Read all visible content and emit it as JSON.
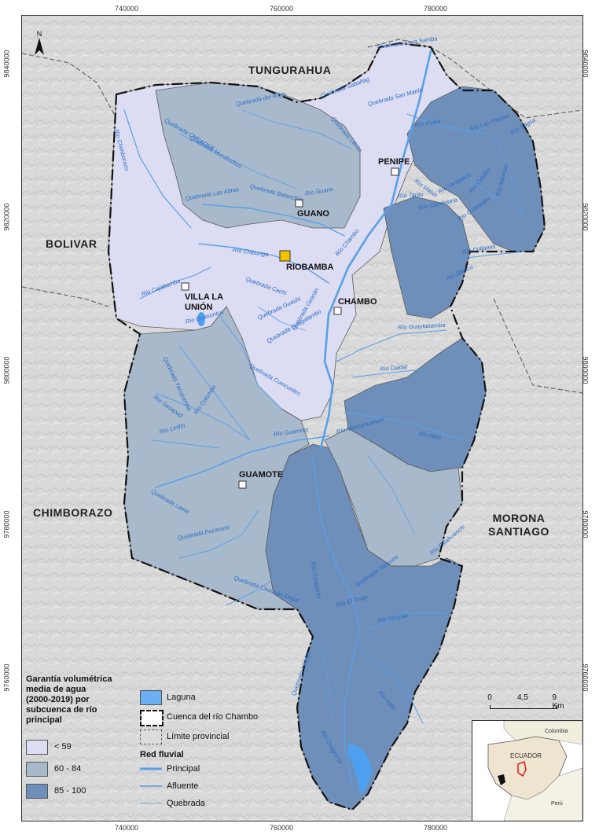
{
  "axes": {
    "x_ticks_top": [
      "740000",
      "760000",
      "780000"
    ],
    "x_ticks_bottom": [
      "740000",
      "760000",
      "780000"
    ],
    "y_ticks_left": [
      "9840000",
      "9820000",
      "9800000",
      "9780000",
      "9760000"
    ],
    "y_ticks_right": [
      "9840000",
      "9820000",
      "9800000",
      "9780000",
      "9760000"
    ]
  },
  "north_arrow": "N",
  "provinces": {
    "tungurahua": "TUNGURAHUA",
    "bolivar": "BOLIVAR",
    "chimborazo": "CHIMBORAZO",
    "morona": "MORONA SANTIAGO"
  },
  "cities": {
    "penipe": "PENIPE",
    "guano": "GUANO",
    "riobamba": "RIOBAMBA",
    "villa": "VILLA LA UNIÓN",
    "chambo": "CHAMBO",
    "guamote": "GUAMOTE"
  },
  "rivers": [
    "Quebrada Pera Samba",
    "Quebrada del Rayo",
    "Quebrada Sabañag",
    "Quebrada San Martín",
    "Quebrada Chilcazaca",
    "Quebrada Murufushca",
    "Quebrada Olivito",
    "Río Puela",
    "Río Las Flautas",
    "Río Sagsa",
    "Río Chimborazo",
    "Quebrada Batanchín",
    "Río Guano",
    "Quebrada Las Abras",
    "Río Matus",
    "Río Yanayacu",
    "Río Cubillín",
    "Río Naranjal",
    "Río Tarau",
    "Río Candelaria",
    "Río Guarquiés",
    "Río Chambo",
    "Río Chibunga",
    "Río Collanes",
    "Río Blanco",
    "Río Cajabamba",
    "Quebrada Cachi",
    "Quebrada Guashi",
    "Quebrada Guarán",
    "Quebrada Guagalambo",
    "Río Guaylabamba",
    "Río Daldal",
    "Río Guasuntos",
    "Quebrada Yacupamba",
    "Quebrada Cumcuntes",
    "Río Sasapud",
    "Río Columbe",
    "Río Linllín",
    "Río Guamote",
    "Río Alao",
    "Río Mismahuanchi",
    "Quebrada Lame",
    "Quebrada Pucarumi",
    "Río Ozogoche",
    "Río Palahuanchi",
    "Quebrada Chausán Chipa",
    "Río El Tingo",
    "Quebrada Yaiarumi",
    "Río Yasipán",
    "Río Atillo",
    "Quebrada Liladzh",
    "Río Osogoche"
  ],
  "legend": {
    "title": [
      "Garantía volumétrica",
      "media de agua",
      "(2000-2019) por",
      "subcuenca de río",
      "principal"
    ],
    "classes": [
      {
        "label": "< 59",
        "color": "#dcdcf2"
      },
      {
        "label": "60 - 84",
        "color": "#a8b9cc"
      },
      {
        "label": "85 - 100",
        "color": "#6e8fba"
      }
    ],
    "laguna": "Laguna",
    "cuenca": "Cuenca del río Chambo",
    "limite": "Límite provincial",
    "red_title": "Red fluvial",
    "principal": "Principal",
    "afluente": "Afluente",
    "quebrada": "Quebrada"
  },
  "scale_bar": {
    "labels": [
      "0",
      "4,5",
      "9 Km"
    ]
  },
  "inset": {
    "colombia": "Colombia",
    "ecuador": "ECUADOR",
    "peru": "Perú"
  },
  "colors": {
    "low": "#dcdcf2",
    "mid": "#a8b9cc",
    "high": "#6e8fba",
    "river": "#5aa0e6",
    "laguna": "#4f9ff0",
    "relief": "#d6d6d6"
  }
}
